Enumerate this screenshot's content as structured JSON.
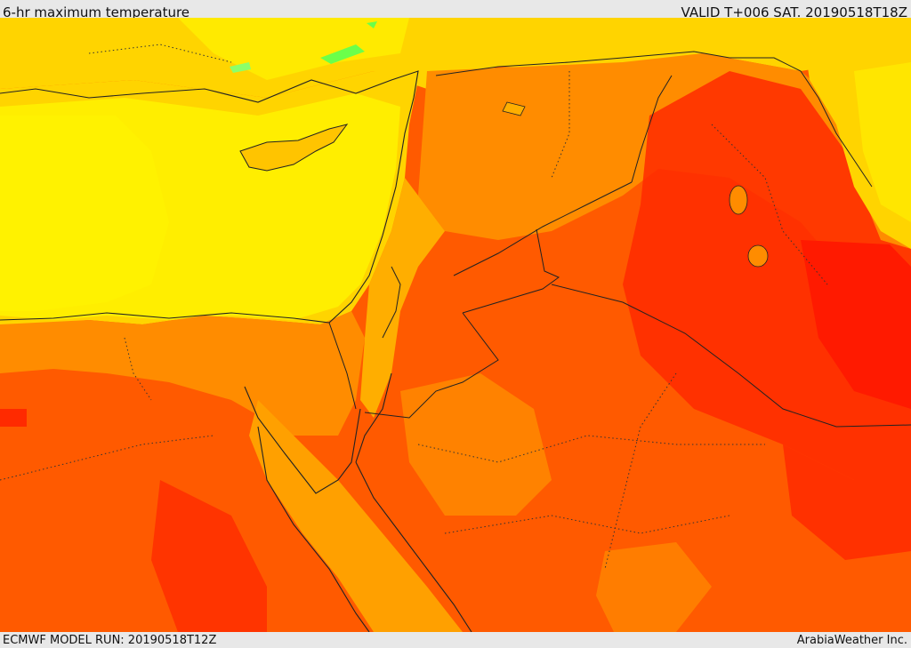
{
  "header": {
    "title": "6-hr maximum temperature",
    "valid": "VALID T+006 SAT. 20190518T18Z"
  },
  "footer": {
    "model_run": "ECMWF MODEL RUN: 20190518T12Z",
    "credit": "ArabiaWeather Inc."
  },
  "colors": {
    "sea_yellow": "#fff200",
    "coast_gold": "#ffd400",
    "orange": "#ff8c00",
    "orange_red": "#ff5a00",
    "red": "#ff2a00",
    "green_high": "#6bff4a"
  }
}
